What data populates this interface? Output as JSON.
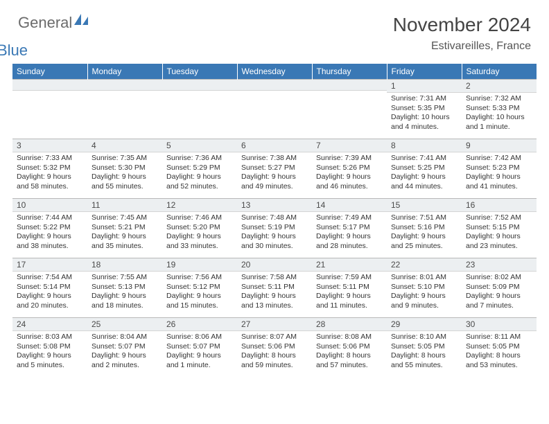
{
  "brand": {
    "main": "General",
    "sub": "Blue"
  },
  "title": "November 2024",
  "location": "Estivareilles, France",
  "colors": {
    "header_bg": "#3a78b5",
    "header_fg": "#ffffff",
    "daynum_bg": "#eceff1",
    "grid_border": "#b8b8b8",
    "brand_blue": "#3a78b5",
    "brand_gray": "#6b6b6b"
  },
  "typography": {
    "title_fontsize": 28,
    "location_fontsize": 16,
    "dayhead_fontsize": 12,
    "daynum_fontsize": 12,
    "body_fontsize": 10.5
  },
  "day_names": [
    "Sunday",
    "Monday",
    "Tuesday",
    "Wednesday",
    "Thursday",
    "Friday",
    "Saturday"
  ],
  "weeks": [
    [
      null,
      null,
      null,
      null,
      null,
      {
        "n": "1",
        "sunrise": "Sunrise: 7:31 AM",
        "sunset": "Sunset: 5:35 PM",
        "daylight": "Daylight: 10 hours and 4 minutes."
      },
      {
        "n": "2",
        "sunrise": "Sunrise: 7:32 AM",
        "sunset": "Sunset: 5:33 PM",
        "daylight": "Daylight: 10 hours and 1 minute."
      }
    ],
    [
      {
        "n": "3",
        "sunrise": "Sunrise: 7:33 AM",
        "sunset": "Sunset: 5:32 PM",
        "daylight": "Daylight: 9 hours and 58 minutes."
      },
      {
        "n": "4",
        "sunrise": "Sunrise: 7:35 AM",
        "sunset": "Sunset: 5:30 PM",
        "daylight": "Daylight: 9 hours and 55 minutes."
      },
      {
        "n": "5",
        "sunrise": "Sunrise: 7:36 AM",
        "sunset": "Sunset: 5:29 PM",
        "daylight": "Daylight: 9 hours and 52 minutes."
      },
      {
        "n": "6",
        "sunrise": "Sunrise: 7:38 AM",
        "sunset": "Sunset: 5:27 PM",
        "daylight": "Daylight: 9 hours and 49 minutes."
      },
      {
        "n": "7",
        "sunrise": "Sunrise: 7:39 AM",
        "sunset": "Sunset: 5:26 PM",
        "daylight": "Daylight: 9 hours and 46 minutes."
      },
      {
        "n": "8",
        "sunrise": "Sunrise: 7:41 AM",
        "sunset": "Sunset: 5:25 PM",
        "daylight": "Daylight: 9 hours and 44 minutes."
      },
      {
        "n": "9",
        "sunrise": "Sunrise: 7:42 AM",
        "sunset": "Sunset: 5:23 PM",
        "daylight": "Daylight: 9 hours and 41 minutes."
      }
    ],
    [
      {
        "n": "10",
        "sunrise": "Sunrise: 7:44 AM",
        "sunset": "Sunset: 5:22 PM",
        "daylight": "Daylight: 9 hours and 38 minutes."
      },
      {
        "n": "11",
        "sunrise": "Sunrise: 7:45 AM",
        "sunset": "Sunset: 5:21 PM",
        "daylight": "Daylight: 9 hours and 35 minutes."
      },
      {
        "n": "12",
        "sunrise": "Sunrise: 7:46 AM",
        "sunset": "Sunset: 5:20 PM",
        "daylight": "Daylight: 9 hours and 33 minutes."
      },
      {
        "n": "13",
        "sunrise": "Sunrise: 7:48 AM",
        "sunset": "Sunset: 5:19 PM",
        "daylight": "Daylight: 9 hours and 30 minutes."
      },
      {
        "n": "14",
        "sunrise": "Sunrise: 7:49 AM",
        "sunset": "Sunset: 5:17 PM",
        "daylight": "Daylight: 9 hours and 28 minutes."
      },
      {
        "n": "15",
        "sunrise": "Sunrise: 7:51 AM",
        "sunset": "Sunset: 5:16 PM",
        "daylight": "Daylight: 9 hours and 25 minutes."
      },
      {
        "n": "16",
        "sunrise": "Sunrise: 7:52 AM",
        "sunset": "Sunset: 5:15 PM",
        "daylight": "Daylight: 9 hours and 23 minutes."
      }
    ],
    [
      {
        "n": "17",
        "sunrise": "Sunrise: 7:54 AM",
        "sunset": "Sunset: 5:14 PM",
        "daylight": "Daylight: 9 hours and 20 minutes."
      },
      {
        "n": "18",
        "sunrise": "Sunrise: 7:55 AM",
        "sunset": "Sunset: 5:13 PM",
        "daylight": "Daylight: 9 hours and 18 minutes."
      },
      {
        "n": "19",
        "sunrise": "Sunrise: 7:56 AM",
        "sunset": "Sunset: 5:12 PM",
        "daylight": "Daylight: 9 hours and 15 minutes."
      },
      {
        "n": "20",
        "sunrise": "Sunrise: 7:58 AM",
        "sunset": "Sunset: 5:11 PM",
        "daylight": "Daylight: 9 hours and 13 minutes."
      },
      {
        "n": "21",
        "sunrise": "Sunrise: 7:59 AM",
        "sunset": "Sunset: 5:11 PM",
        "daylight": "Daylight: 9 hours and 11 minutes."
      },
      {
        "n": "22",
        "sunrise": "Sunrise: 8:01 AM",
        "sunset": "Sunset: 5:10 PM",
        "daylight": "Daylight: 9 hours and 9 minutes."
      },
      {
        "n": "23",
        "sunrise": "Sunrise: 8:02 AM",
        "sunset": "Sunset: 5:09 PM",
        "daylight": "Daylight: 9 hours and 7 minutes."
      }
    ],
    [
      {
        "n": "24",
        "sunrise": "Sunrise: 8:03 AM",
        "sunset": "Sunset: 5:08 PM",
        "daylight": "Daylight: 9 hours and 5 minutes."
      },
      {
        "n": "25",
        "sunrise": "Sunrise: 8:04 AM",
        "sunset": "Sunset: 5:07 PM",
        "daylight": "Daylight: 9 hours and 2 minutes."
      },
      {
        "n": "26",
        "sunrise": "Sunrise: 8:06 AM",
        "sunset": "Sunset: 5:07 PM",
        "daylight": "Daylight: 9 hours and 1 minute."
      },
      {
        "n": "27",
        "sunrise": "Sunrise: 8:07 AM",
        "sunset": "Sunset: 5:06 PM",
        "daylight": "Daylight: 8 hours and 59 minutes."
      },
      {
        "n": "28",
        "sunrise": "Sunrise: 8:08 AM",
        "sunset": "Sunset: 5:06 PM",
        "daylight": "Daylight: 8 hours and 57 minutes."
      },
      {
        "n": "29",
        "sunrise": "Sunrise: 8:10 AM",
        "sunset": "Sunset: 5:05 PM",
        "daylight": "Daylight: 8 hours and 55 minutes."
      },
      {
        "n": "30",
        "sunrise": "Sunrise: 8:11 AM",
        "sunset": "Sunset: 5:05 PM",
        "daylight": "Daylight: 8 hours and 53 minutes."
      }
    ]
  ]
}
